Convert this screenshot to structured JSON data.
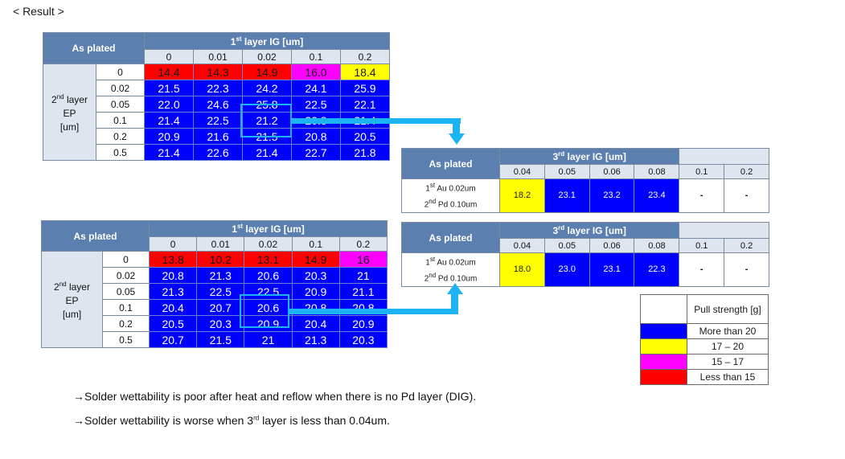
{
  "heading": "< Result >",
  "colors": {
    "blue": "#0000ff",
    "red": "#ff0000",
    "magenta": "#ff00ff",
    "yellow": "#ffff00",
    "header": "#5b7fae",
    "highlight": "#1cb4f5"
  },
  "table1": {
    "corner": "As plated",
    "col_group": {
      "pre": "1",
      "sup": "st",
      "post": " layer IG [um]"
    },
    "cols": [
      "0",
      "0.01",
      "0.02",
      "0.1",
      "0.2"
    ],
    "row_group": {
      "pre": "2",
      "sup": "nd",
      "l1": "layer",
      "l2": "EP",
      "l3": "[um]"
    },
    "rows": [
      {
        "label": "0",
        "values": [
          "14.4",
          "14.3",
          "14.9",
          "16.0",
          "18.4"
        ]
      },
      {
        "label": "0.02",
        "values": [
          "21.5",
          "22.3",
          "24.2",
          "24.1",
          "25.9"
        ]
      },
      {
        "label": "0.05",
        "values": [
          "22.0",
          "24.6",
          "25.8",
          "22.5",
          "22.1"
        ]
      },
      {
        "label": "0.1",
        "values": [
          "21.4",
          "22.5",
          "21.2",
          "20.8",
          "21.4"
        ]
      },
      {
        "label": "0.2",
        "values": [
          "20.9",
          "21.6",
          "21.5",
          "20.8",
          "20.5"
        ]
      },
      {
        "label": "0.5",
        "values": [
          "21.4",
          "22.6",
          "21.4",
          "22.7",
          "21.8"
        ]
      }
    ],
    "colors": [
      [
        "red",
        "red",
        "red",
        "magenta",
        "yellow"
      ],
      [
        "blue",
        "blue",
        "blue",
        "blue",
        "blue"
      ],
      [
        "blue",
        "blue",
        "blue",
        "blue",
        "blue"
      ],
      [
        "blue",
        "blue",
        "blue",
        "blue",
        "blue"
      ],
      [
        "blue",
        "blue",
        "blue",
        "blue",
        "blue"
      ],
      [
        "blue",
        "blue",
        "blue",
        "blue",
        "blue"
      ]
    ]
  },
  "table2": {
    "corner": "As plated",
    "col_group": {
      "pre": "1",
      "sup": "st",
      "post": " layer IG [um]"
    },
    "cols": [
      "0",
      "0.01",
      "0.02",
      "0.1",
      "0.2"
    ],
    "row_group": {
      "pre": "2",
      "sup": "nd",
      "l1": "layer",
      "l2": "EP",
      "l3": "[um]"
    },
    "rows": [
      {
        "label": "0",
        "values": [
          "13.8",
          "10.2",
          "13.1",
          "14.9",
          "16"
        ]
      },
      {
        "label": "0.02",
        "values": [
          "20.8",
          "21.3",
          "20.6",
          "20.3",
          "21"
        ]
      },
      {
        "label": "0.05",
        "values": [
          "21.3",
          "22.5",
          "22.5",
          "20.9",
          "21.1"
        ]
      },
      {
        "label": "0.1",
        "values": [
          "20.4",
          "20.7",
          "20.6",
          "20.8",
          "20.8"
        ]
      },
      {
        "label": "0.2",
        "values": [
          "20.5",
          "20.3",
          "20.9",
          "20.4",
          "20.9"
        ]
      },
      {
        "label": "0.5",
        "values": [
          "20.7",
          "21.5",
          "21",
          "21.3",
          "20.3"
        ]
      }
    ],
    "colors": [
      [
        "red",
        "red",
        "red",
        "red",
        "magenta"
      ],
      [
        "blue",
        "blue",
        "blue",
        "blue",
        "blue"
      ],
      [
        "blue",
        "blue",
        "blue",
        "blue",
        "blue"
      ],
      [
        "blue",
        "blue",
        "blue",
        "blue",
        "blue"
      ],
      [
        "blue",
        "blue",
        "blue",
        "blue",
        "blue"
      ],
      [
        "blue",
        "blue",
        "blue",
        "blue",
        "blue"
      ]
    ]
  },
  "small1": {
    "corner": "As plated",
    "col_group": {
      "pre": "3",
      "sup": "rd",
      "post": " layer IG [um]"
    },
    "cols": [
      "0.04",
      "0.05",
      "0.06",
      "0.08",
      "0.1",
      "0.2"
    ],
    "row_label": {
      "a_pre": "1",
      "a_sup": "st",
      "a_post": " Au 0.02um",
      "b_pre": "2",
      "b_sup": "nd",
      "b_post": " Pd 0.10um"
    },
    "values": [
      "18.2",
      "23.1",
      "23.2",
      "23.4",
      "-",
      "-"
    ],
    "colors": [
      "yellow",
      "blue",
      "blue",
      "blue",
      "white",
      "white"
    ]
  },
  "small2": {
    "corner": "As plated",
    "col_group": {
      "pre": "3",
      "sup": "rd",
      "post": " layer IG [um]"
    },
    "cols": [
      "0.04",
      "0.05",
      "0.06",
      "0.08",
      "0.1",
      "0.2"
    ],
    "row_label": {
      "a_pre": "1",
      "a_sup": "st",
      "a_post": " Au 0.02um",
      "b_pre": "2",
      "b_sup": "nd",
      "b_post": " Pd 0.10um"
    },
    "values": [
      "18.0",
      "23.0",
      "23.1",
      "22.3",
      "-",
      "-"
    ],
    "colors": [
      "yellow",
      "blue",
      "blue",
      "blue",
      "white",
      "white"
    ]
  },
  "legend": {
    "title": "Pull strength [g]",
    "items": [
      {
        "color": "blue",
        "label": "More than 20"
      },
      {
        "color": "yellow",
        "label": "17 – 20"
      },
      {
        "color": "magenta",
        "label": "15 – 17"
      },
      {
        "color": "red",
        "label": "Less than 15"
      }
    ]
  },
  "notes": {
    "n1": "→Solder wettability is poor after heat and reflow when there is no Pd layer (DIG).",
    "n2_pre": "→Solder wettability is worse when 3",
    "n2_sup": "rd",
    "n2_post": " layer is less than 0.04um."
  }
}
